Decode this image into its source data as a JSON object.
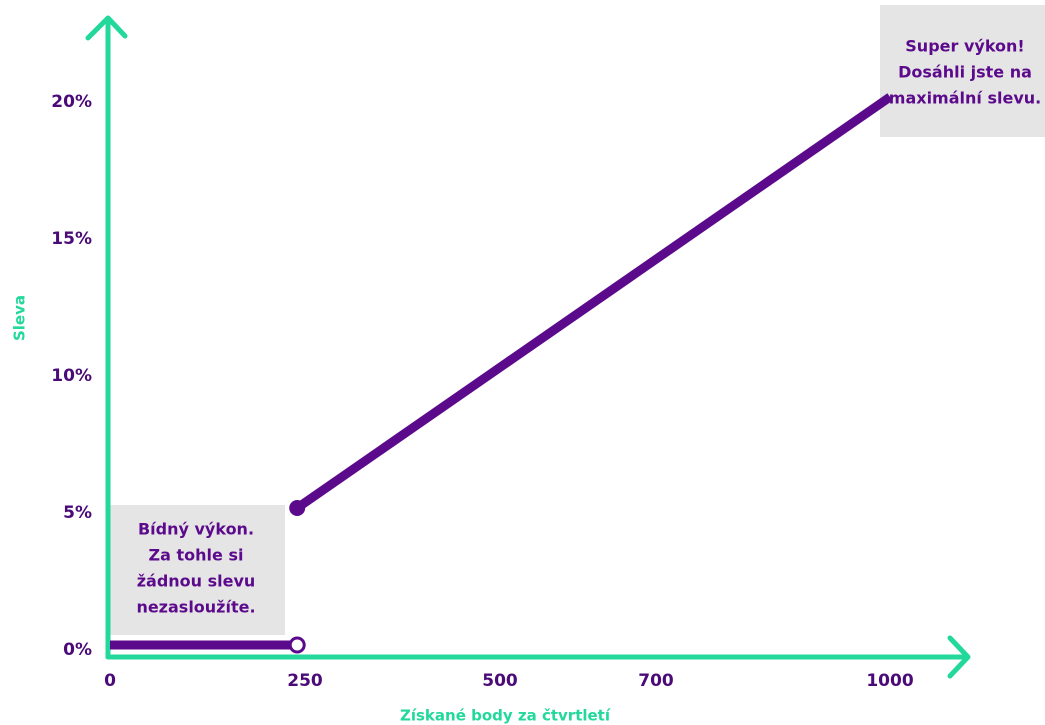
{
  "chart_data": {
    "type": "line",
    "xlabel": "Získané body za čtvrtletí",
    "ylabel": "Sleva",
    "xlim": [
      0,
      1000
    ],
    "ylim": [
      0,
      20
    ],
    "xticks": [
      0,
      250,
      500,
      700,
      1000
    ],
    "yticks": [
      {
        "value": 0,
        "label": "0%"
      },
      {
        "value": 5,
        "label": "5%"
      },
      {
        "value": 10,
        "label": "10%"
      },
      {
        "value": 15,
        "label": "15%"
      },
      {
        "value": 20,
        "label": "20%"
      }
    ],
    "axis_color": "#22d99b",
    "series": [
      {
        "color": "#5c0a8c",
        "x": [
          0,
          240
        ],
        "values": [
          0,
          0
        ]
      },
      {
        "color": "#5c0a8c",
        "x": [
          240,
          1000
        ],
        "values": [
          5,
          20
        ]
      }
    ],
    "annotations": [
      {
        "lines": [
          "Bídný výkon.",
          "Za tohle si",
          "žádnou slevu",
          "nezasloužíte."
        ]
      },
      {
        "lines": [
          "Super výkon!",
          "Dosáhli jste na",
          "maximální slevu."
        ]
      }
    ]
  }
}
